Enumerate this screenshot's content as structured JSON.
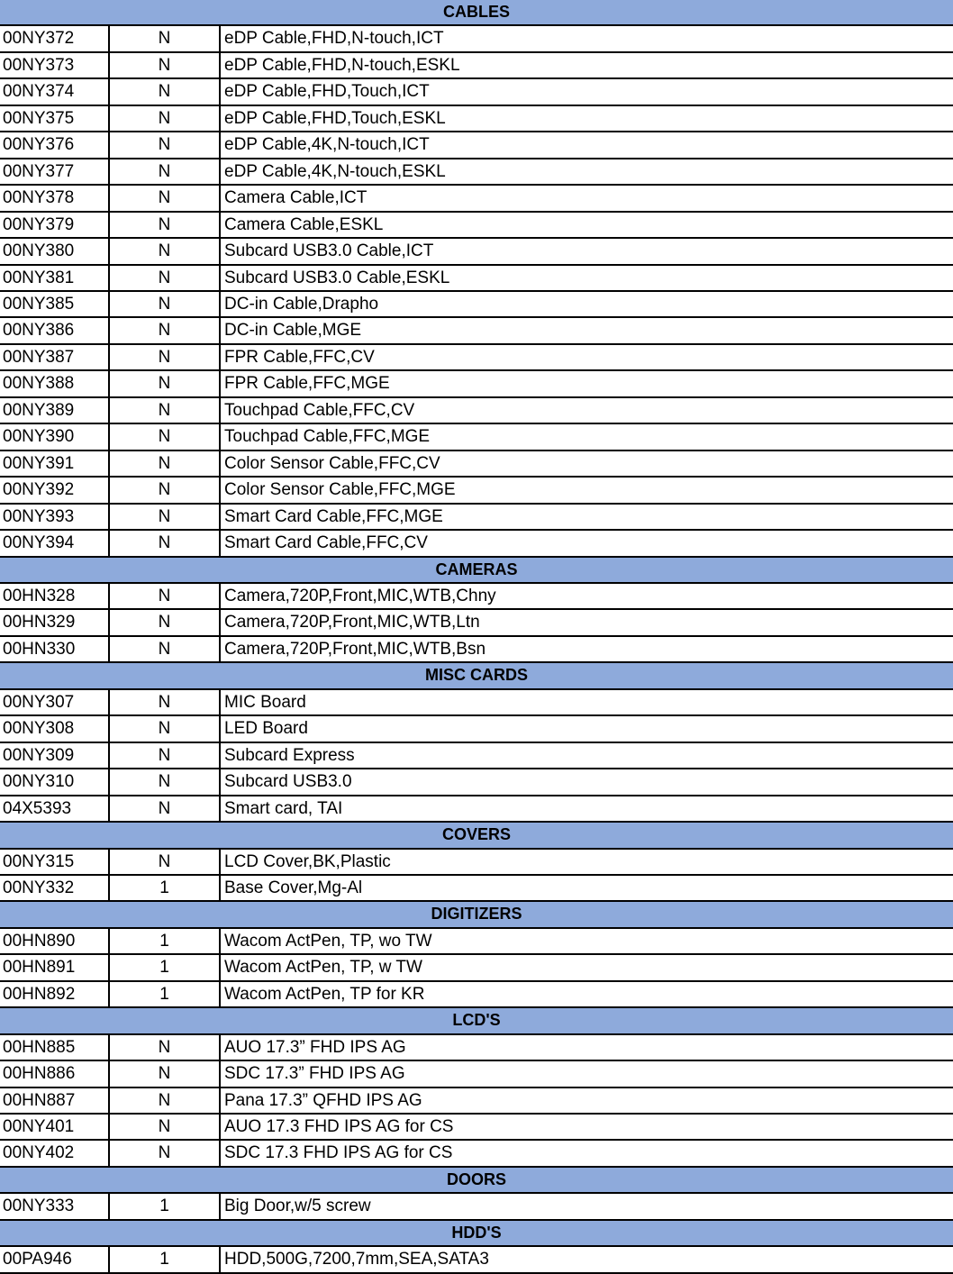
{
  "colors": {
    "section_header": "#8eaadb",
    "grid": "#000000"
  },
  "sections": [
    {
      "title": "CABLES",
      "rows": [
        [
          "00NY372",
          "N",
          "eDP Cable,FHD,N-touch,ICT"
        ],
        [
          "00NY373",
          "N",
          "eDP Cable,FHD,N-touch,ESKL"
        ],
        [
          "00NY374",
          "N",
          "eDP Cable,FHD,Touch,ICT"
        ],
        [
          "00NY375",
          "N",
          "eDP Cable,FHD,Touch,ESKL"
        ],
        [
          "00NY376",
          "N",
          "eDP Cable,4K,N-touch,ICT"
        ],
        [
          "00NY377",
          "N",
          "eDP Cable,4K,N-touch,ESKL"
        ],
        [
          "00NY378",
          "N",
          "Camera Cable,ICT"
        ],
        [
          "00NY379",
          "N",
          "Camera Cable,ESKL"
        ],
        [
          "00NY380",
          "N",
          "Subcard USB3.0 Cable,ICT"
        ],
        [
          "00NY381",
          "N",
          "Subcard USB3.0 Cable,ESKL"
        ],
        [
          "00NY385",
          "N",
          "DC-in Cable,Drapho"
        ],
        [
          "00NY386",
          "N",
          "DC-in Cable,MGE"
        ],
        [
          "00NY387",
          "N",
          "FPR Cable,FFC,CV"
        ],
        [
          "00NY388",
          "N",
          "FPR Cable,FFC,MGE"
        ],
        [
          "00NY389",
          "N",
          "Touchpad Cable,FFC,CV"
        ],
        [
          "00NY390",
          "N",
          "Touchpad Cable,FFC,MGE"
        ],
        [
          "00NY391",
          "N",
          "Color Sensor Cable,FFC,CV"
        ],
        [
          "00NY392",
          "N",
          "Color Sensor Cable,FFC,MGE"
        ],
        [
          "00NY393",
          "N",
          "Smart Card Cable,FFC,MGE"
        ],
        [
          "00NY394",
          "N",
          "Smart Card Cable,FFC,CV"
        ]
      ]
    },
    {
      "title": "CAMERAS",
      "rows": [
        [
          "00HN328",
          "N",
          "Camera,720P,Front,MIC,WTB,Chny"
        ],
        [
          "00HN329",
          "N",
          "Camera,720P,Front,MIC,WTB,Ltn"
        ],
        [
          "00HN330",
          "N",
          "Camera,720P,Front,MIC,WTB,Bsn"
        ]
      ]
    },
    {
      "title": "MISC CARDS",
      "rows": [
        [
          "00NY307",
          "N",
          "MIC Board"
        ],
        [
          "00NY308",
          "N",
          "LED Board"
        ],
        [
          "00NY309",
          "N",
          "Subcard Express"
        ],
        [
          "00NY310",
          "N",
          "Subcard USB3.0"
        ],
        [
          "04X5393",
          "N",
          "Smart card, TAI"
        ]
      ]
    },
    {
      "title": "COVERS",
      "rows": [
        [
          "00NY315",
          "N",
          "LCD Cover,BK,Plastic"
        ],
        [
          "00NY332",
          "1",
          "Base Cover,Mg-Al"
        ]
      ]
    },
    {
      "title": "DIGITIZERS",
      "rows": [
        [
          "00HN890",
          "1",
          "Wacom ActPen, TP, wo TW"
        ],
        [
          "00HN891",
          "1",
          "Wacom ActPen, TP, w TW"
        ],
        [
          "00HN892",
          "1",
          "Wacom ActPen, TP for KR"
        ]
      ]
    },
    {
      "title": "LCD'S",
      "rows": [
        [
          "00HN885",
          "N",
          "AUO 17.3” FHD IPS AG"
        ],
        [
          "00HN886",
          "N",
          "SDC 17.3” FHD IPS AG"
        ],
        [
          "00HN887",
          "N",
          "Pana 17.3” QFHD IPS AG"
        ],
        [
          "00NY401",
          "N",
          "AUO 17.3 FHD IPS AG for CS"
        ],
        [
          "00NY402",
          "N",
          "SDC 17.3 FHD IPS AG for CS"
        ]
      ]
    },
    {
      "title": "DOORS",
      "rows": [
        [
          "00NY333",
          "1",
          "Big Door,w/5 screw"
        ]
      ]
    },
    {
      "title": "HDD'S",
      "rows": [
        [
          "00PA946",
          "1",
          "HDD,500G,7200,7mm,SEA,SATA3"
        ]
      ]
    }
  ]
}
